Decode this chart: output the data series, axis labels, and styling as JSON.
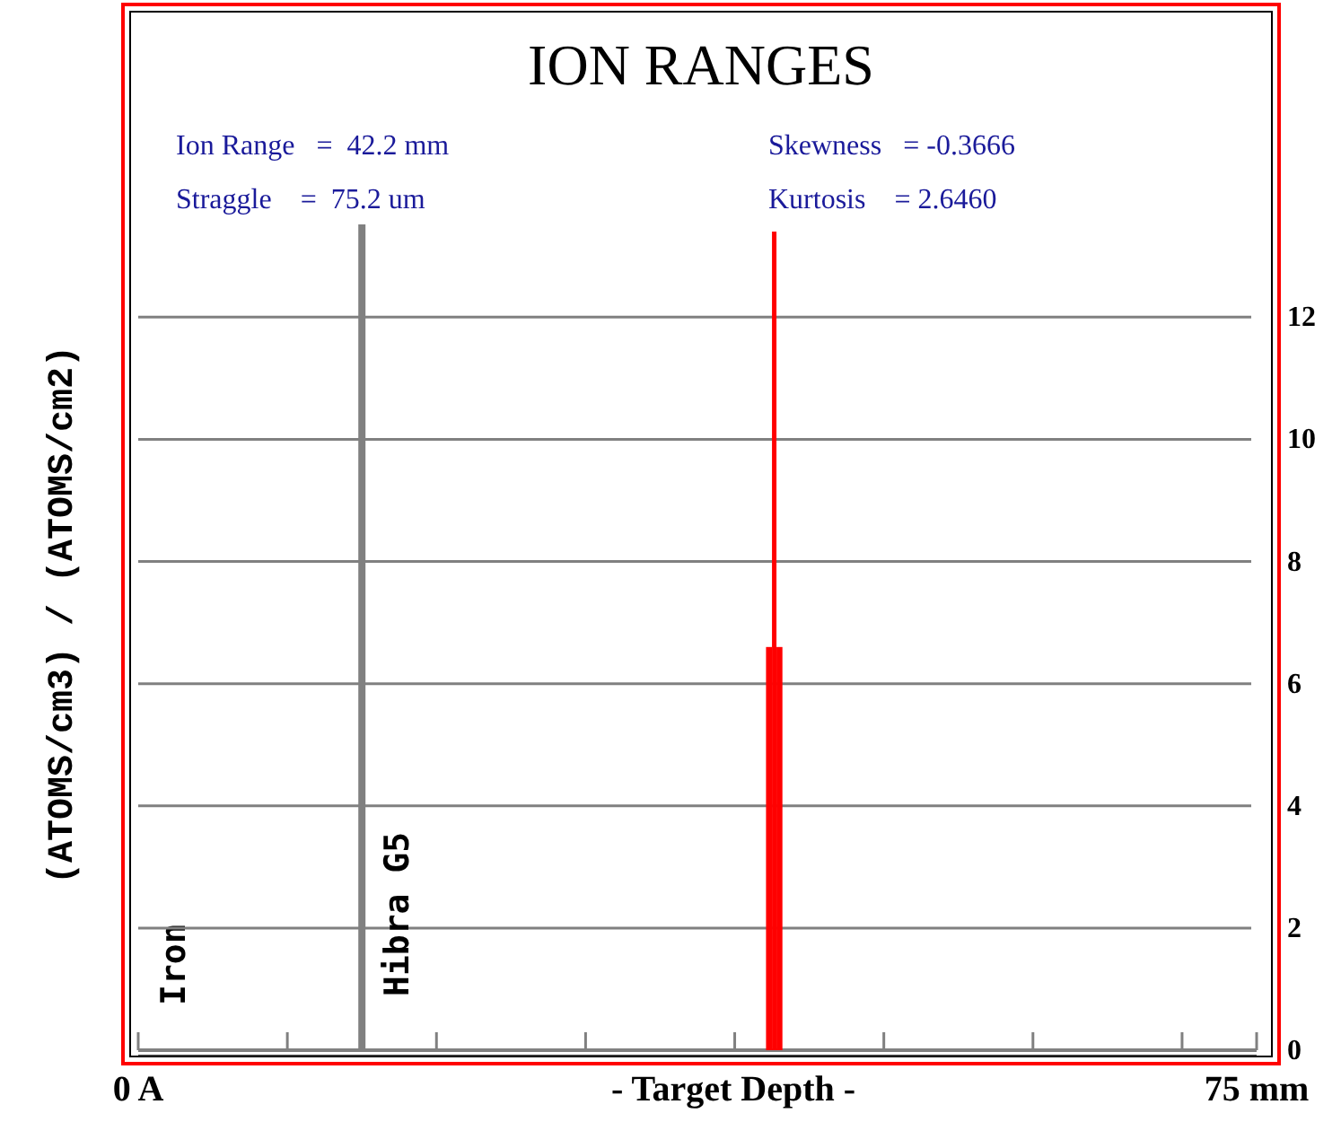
{
  "chart_data": {
    "type": "histogram",
    "title": "ION RANGES",
    "xlabel": "- Target Depth -",
    "ylabel": "(ATOMS/cm3) / (ATOMS/cm2)",
    "bins": [
      42.1,
      42.5,
      42.8,
      43.2
    ],
    "values": [
      6.6,
      13.4,
      6.6
    ],
    "color": "#ff0000",
    "xlim": [
      0,
      75
    ],
    "xticks": [
      {
        "value": 0,
        "label": "0 A"
      },
      {
        "value": 10,
        "label": null
      },
      {
        "value": 20,
        "label": null
      },
      {
        "value": 30,
        "label": null
      },
      {
        "value": 40,
        "label": null
      },
      {
        "value": 50,
        "label": null
      },
      {
        "value": 60,
        "label": null
      },
      {
        "value": 70,
        "label": null
      },
      {
        "value": 75,
        "label": "75 mm"
      }
    ],
    "ylim": [
      0,
      17
    ],
    "yticks": [
      0,
      2,
      4,
      6,
      8,
      10,
      12
    ],
    "grid": "y",
    "ref_lines": [
      {
        "axis": "x",
        "value": 15,
        "label": "Hibra G5",
        "color": "#808080"
      }
    ],
    "annotations": [
      "Ion Range   =  42.2 mm",
      "Straggle    =  75.2 um",
      "Skewness   = -0.3666",
      "Kurtosis    = 2.6460",
      "Iron"
    ]
  }
}
